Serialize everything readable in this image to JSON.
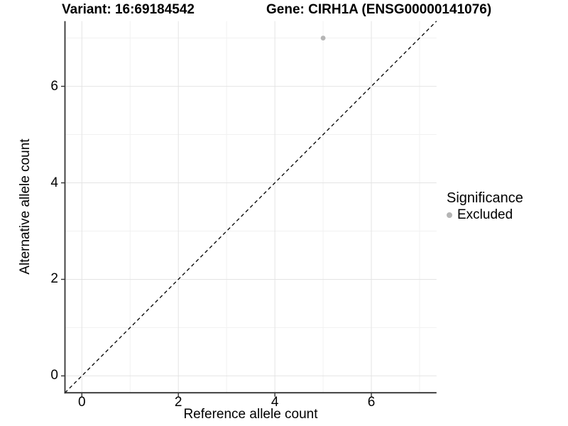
{
  "figure": {
    "title_left": "Variant: 16:69184542",
    "title_right": "Gene: CIRH1A (ENSG00000141076)"
  },
  "chart_data": {
    "type": "scatter",
    "title": "Variant: 16:69184542   Gene: CIRH1A (ENSG00000141076)",
    "title_left": "Variant: 16:69184542",
    "title_right": "Gene: CIRH1A (ENSG00000141076)",
    "xlabel": "Reference allele count",
    "ylabel": "Alternative allele count",
    "xlim": [
      -0.35,
      7.35
    ],
    "ylim": [
      -0.35,
      7.35
    ],
    "x_ticks": [
      0,
      2,
      4,
      6
    ],
    "y_ticks": [
      0,
      2,
      4,
      6
    ],
    "x_minor_ticks": [
      1,
      3,
      5,
      7
    ],
    "y_minor_ticks": [
      1,
      3,
      5,
      7
    ],
    "grid": "major+minor",
    "series": [
      {
        "name": "Excluded",
        "marker": "circle",
        "color": "#b5b5b5",
        "points": [
          {
            "x": 5,
            "y": 7
          }
        ]
      }
    ],
    "reference_line": {
      "type": "identity",
      "equation": "y = x",
      "linestyle": "dashed",
      "color": "#000000"
    },
    "legend": {
      "title": "Significance",
      "position": "right",
      "entries": [
        {
          "label": "Excluded",
          "color": "#b5b5b5",
          "marker": "circle"
        }
      ]
    },
    "colors": {
      "axis_line": "#333333",
      "tick_mark": "#333333",
      "grid_major": "#e4e4e4",
      "grid_minor": "#f1f1f1",
      "text": "#000000",
      "background": "#ffffff"
    }
  }
}
